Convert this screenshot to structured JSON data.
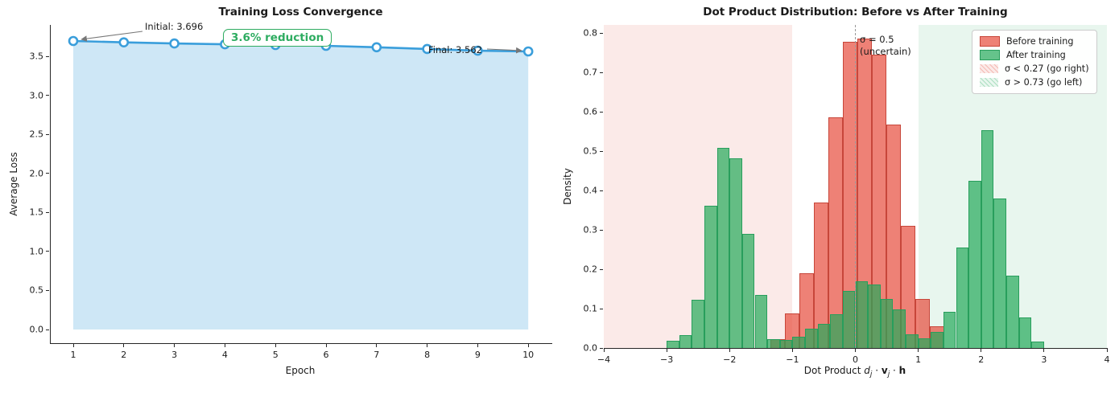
{
  "figure": {
    "background": "#ffffff"
  },
  "chart_data": [
    {
      "type": "line",
      "title": "Training Loss Convergence",
      "xlabel": "Epoch",
      "ylabel": "Average Loss",
      "x": [
        1,
        2,
        3,
        4,
        5,
        6,
        7,
        8,
        9,
        10
      ],
      "y": [
        3.696,
        3.678,
        3.664,
        3.653,
        3.644,
        3.634,
        3.615,
        3.594,
        3.571,
        3.562
      ],
      "xtick_labels": [
        "1",
        "2",
        "3",
        "4",
        "5",
        "6",
        "7",
        "8",
        "9",
        "10"
      ],
      "ytick_values": [
        0.0,
        0.5,
        1.0,
        1.5,
        2.0,
        2.5,
        3.0,
        3.5
      ],
      "ytick_labels": [
        "0.0",
        "0.5",
        "1.0",
        "1.5",
        "2.0",
        "2.5",
        "3.0",
        "3.5"
      ],
      "xlim": [
        0.55,
        10.45
      ],
      "ylim": [
        0,
        3.9
      ],
      "grid": false,
      "annotations": {
        "initial": "Initial: 3.696",
        "final": "Final: 3.562",
        "reduction_box": "3.6% reduction"
      },
      "line_color": "#3a9edb",
      "fill_color": "rgba(58,158,219,0.25)",
      "marker_face": "#ffffff",
      "annotation_green": "#2eac61",
      "arrow_color": "#777777"
    },
    {
      "type": "histogram",
      "title": "Dot Product Distribution: Before vs After Training",
      "xlabel_parts": [
        {
          "t": "Dot Product "
        },
        {
          "t": "d",
          "s": "i"
        },
        {
          "t": "j",
          "s": "sub"
        },
        {
          "t": " · "
        },
        {
          "t": "v",
          "s": "b"
        },
        {
          "t": "j",
          "s": "sub"
        },
        {
          "t": " · "
        },
        {
          "t": "h",
          "s": "b"
        }
      ],
      "ylabel": "Density",
      "xtick_values": [
        -4,
        -3,
        -2,
        -1,
        0,
        1,
        2,
        3,
        4
      ],
      "xtick_labels": [
        "−4",
        "−3",
        "−2",
        "−1",
        "0",
        "1",
        "2",
        "3",
        "4"
      ],
      "ytick_values": [
        0,
        0.1,
        0.2,
        0.3,
        0.4,
        0.5,
        0.6,
        0.7,
        0.8
      ],
      "ytick_labels": [
        "0.0",
        "0.1",
        "0.2",
        "0.3",
        "0.4",
        "0.5",
        "0.6",
        "0.7",
        "0.8"
      ],
      "xlim": [
        -4,
        4
      ],
      "ylim": [
        0,
        0.82
      ],
      "grid": false,
      "legend_position": "top-right",
      "series": [
        {
          "name": "Before training",
          "bin_start": -1.35,
          "bin_width": 0.23,
          "heights": [
            0.022,
            0.088,
            0.19,
            0.37,
            0.585,
            0.778,
            0.785,
            0.745,
            0.567,
            0.31,
            0.125,
            0.055
          ],
          "fill": "rgba(231,76,60,0.7)",
          "edge": "#c7463a"
        },
        {
          "name": "After training",
          "bin_start": -3.0,
          "bin_width": 0.2,
          "heights": [
            0.018,
            0.032,
            0.122,
            0.362,
            0.508,
            0.482,
            0.29,
            0.135,
            0.022,
            0.02,
            0.028,
            0.05,
            0.062,
            0.085,
            0.145,
            0.17,
            0.162,
            0.125,
            0.098,
            0.035,
            0.024,
            0.04,
            0.092,
            0.255,
            0.425,
            0.553,
            0.38,
            0.184,
            0.078,
            0.016
          ],
          "fill": "rgba(35,170,90,0.7)",
          "edge": "#289e5c"
        }
      ],
      "bands": [
        {
          "label": "σ < 0.27 (go right)",
          "x0": -4,
          "x1": -1,
          "color": "#fbeae8"
        },
        {
          "label": "σ > 0.73 (go left)",
          "x0": 1,
          "x1": 4,
          "color": "#e8f6ee"
        }
      ],
      "vline": {
        "x": 0,
        "label_line1": "σ = 0.5",
        "label_line2": "(uncertain)",
        "color": "#999999"
      },
      "legend": {
        "items": [
          {
            "label": "Before training",
            "swatch": "before"
          },
          {
            "label": "After training",
            "swatch": "after"
          },
          {
            "label": "σ < 0.27 (go right)",
            "swatch": "pink"
          },
          {
            "label": "σ > 0.73 (go left)",
            "swatch": "lgreen"
          }
        ]
      }
    }
  ]
}
